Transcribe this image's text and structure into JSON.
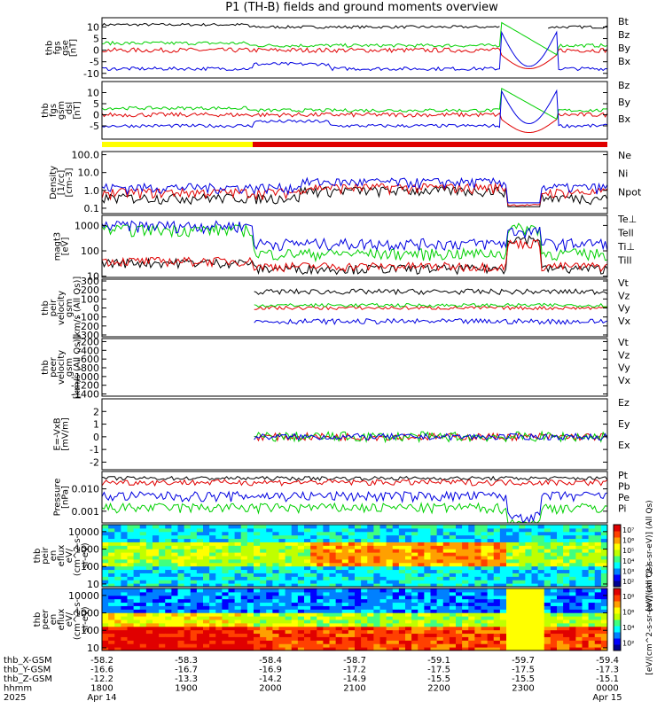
{
  "title": "P1 (TH-B) fields and ground moments overview",
  "colors": {
    "black": "#000000",
    "red": "#e00000",
    "green": "#00d000",
    "blue": "#0000e0",
    "yellow": "#ffff00"
  },
  "chart_data": [
    {
      "type": "line",
      "id": "fgs_gse",
      "ylabel": [
        "thb",
        "fgs",
        "gse",
        "[nT]"
      ],
      "ylim": [
        -12,
        14
      ],
      "ticks": [
        -10,
        -5,
        0,
        5,
        10
      ],
      "series": [
        {
          "name": "Bt",
          "color": "red_black",
          "values": []
        },
        {
          "name": "Bz",
          "color": "red"
        },
        {
          "name": "By",
          "color": "green"
        },
        {
          "name": "Bx",
          "color": "blue"
        }
      ],
      "legend": [
        {
          "text": "Bt",
          "color": "black"
        },
        {
          "text": "Bz",
          "color": "red"
        },
        {
          "text": "By",
          "color": "green"
        },
        {
          "text": "Bx",
          "color": "blue"
        }
      ]
    },
    {
      "type": "line",
      "id": "fgs_gsm",
      "ylabel": [
        "thb",
        "fgs",
        "gsm",
        "_dsl",
        "[nT]"
      ],
      "ylim": [
        -11,
        15
      ],
      "ticks": [
        -5,
        0,
        5,
        10
      ],
      "legend": [
        {
          "text": "Bz",
          "color": "red"
        },
        {
          "text": "By",
          "color": "green"
        },
        {
          "text": "Bx",
          "color": "blue"
        }
      ]
    },
    {
      "type": "line",
      "id": "density",
      "ylabel": [
        "Density",
        "[1/cc]",
        "[cm-3]"
      ],
      "scale": "log",
      "ylim": [
        0.05,
        150
      ],
      "ticks": [
        "0.1",
        "1.0",
        "10.0",
        "100.0"
      ],
      "legend": [
        {
          "text": "Ne",
          "color": "red"
        },
        {
          "text": "Ni",
          "color": "black"
        },
        {
          "text": "Npot",
          "color": "blue"
        }
      ]
    },
    {
      "type": "line",
      "id": "temp",
      "ylabel": [
        "magt3",
        "[eV]"
      ],
      "scale": "log",
      "ylim": [
        9,
        2500
      ],
      "ticks": [
        "10",
        "100",
        "1000"
      ],
      "legend": [
        {
          "text": "Te⊥",
          "color": "red"
        },
        {
          "text": "Tell",
          "color": "black"
        },
        {
          "text": "Ti⊥",
          "color": "green"
        },
        {
          "text": "Till",
          "color": "green"
        }
      ]
    },
    {
      "type": "line",
      "id": "peir_vel",
      "ylabel": [
        "thb",
        "peir",
        "velocity",
        "gsm",
        "[km/s (All Qs)]"
      ],
      "ylim": [
        -320,
        320
      ],
      "ticks": [
        "-300",
        "-200",
        "-100",
        "0",
        "100",
        "200",
        "300"
      ],
      "legend": [
        {
          "text": "Vt",
          "color": "black"
        },
        {
          "text": "Vz",
          "color": "red"
        },
        {
          "text": "Vy",
          "color": "green"
        },
        {
          "text": "Vx",
          "color": "blue"
        }
      ]
    },
    {
      "type": "line",
      "id": "peer_vel",
      "ylabel": [
        "thb",
        "peer",
        "velocity",
        "gsm",
        "[km/s (All Qs)]"
      ],
      "ylim": [
        -1450,
        -130
      ],
      "ticks": [
        "-1400",
        "-1200",
        "-1000",
        "-800",
        "-600",
        "-400",
        "-200"
      ],
      "legend": [
        {
          "text": "Vt",
          "color": "black"
        },
        {
          "text": "Vz",
          "color": "red"
        },
        {
          "text": "Vy",
          "color": "green"
        },
        {
          "text": "Vx",
          "color": "blue"
        }
      ]
    },
    {
      "type": "line",
      "id": "efield",
      "ylabel": [
        "E=-VxB",
        "[mV/m]"
      ],
      "ylim": [
        -2.6,
        3.0
      ],
      "ticks": [
        "-2",
        "-1",
        "0",
        "1",
        "2"
      ],
      "legend": [
        {
          "text": "Ez",
          "color": "red"
        },
        {
          "text": "Ey",
          "color": "green"
        },
        {
          "text": "Ex",
          "color": "blue"
        }
      ]
    },
    {
      "type": "line",
      "id": "pressure",
      "ylabel": [
        "Pressure",
        "[nPa]"
      ],
      "scale": "log",
      "ylim": [
        0.0003,
        0.06
      ],
      "ticks": [
        "0.001",
        "0.010"
      ],
      "legend": [
        {
          "text": "Pt",
          "color": "black"
        },
        {
          "text": "Pb",
          "color": "red"
        },
        {
          "text": "Pe",
          "color": "green"
        },
        {
          "text": "Pi",
          "color": "blue"
        }
      ]
    },
    {
      "type": "heatmap",
      "id": "peir_en",
      "ylabel": [
        "thb",
        "peir",
        "en",
        "eflux",
        "eV/",
        "(cm^2-s-",
        "sr-eV)"
      ],
      "scale": "log",
      "ylim": [
        7,
        25000
      ],
      "ticks": [
        "10",
        "100",
        "1000",
        "10000"
      ],
      "cbar_ticks": [
        "10²",
        "10³",
        "10⁴",
        "10⁵",
        "10⁶",
        "10⁷"
      ],
      "cbar_label": "[eV/(cm^2-s-sr-eV)] (All Qs)"
    },
    {
      "type": "heatmap",
      "id": "peer_en",
      "ylabel": [
        "thb",
        "peer",
        "en",
        "eflux",
        "eV/",
        "(cm^2-s-",
        "sr-eV)"
      ],
      "scale": "log",
      "ylim": [
        7,
        25000
      ],
      "ticks": [
        "10",
        "100",
        "1000",
        "10000"
      ],
      "cbar_ticks": [
        "10²",
        "10⁴",
        "10⁶",
        "10⁸"
      ],
      "cbar_label": "[eV/(cm^2-s-sr-eV)] (All Qs)"
    }
  ],
  "xaxis": {
    "row_labels": [
      "thb_X-GSM",
      "thb_Y-GSM",
      "thb_Z-GSM",
      "hhmm",
      "2025"
    ],
    "columns": [
      {
        "x": "-58.2",
        "y": "-16.6",
        "z": "-12.2",
        "hhmm": "1800",
        "date": "Apr 14"
      },
      {
        "x": "-58.3",
        "y": "-16.7",
        "z": "-13.3",
        "hhmm": "1900",
        "date": ""
      },
      {
        "x": "-58.4",
        "y": "-16.9",
        "z": "-14.2",
        "hhmm": "2000",
        "date": ""
      },
      {
        "x": "-58.7",
        "y": "-17.2",
        "z": "-14.9",
        "hhmm": "2100",
        "date": ""
      },
      {
        "x": "-59.1",
        "y": "-17.5",
        "z": "-15.5",
        "hhmm": "2200",
        "date": ""
      },
      {
        "x": "-59.7",
        "y": "-17.5",
        "z": "-15.5",
        "hhmm": "2300",
        "date": ""
      },
      {
        "x": "-59.4",
        "y": "-17.3",
        "z": "-15.1",
        "hhmm": "0000",
        "date": "Apr 15"
      }
    ]
  }
}
